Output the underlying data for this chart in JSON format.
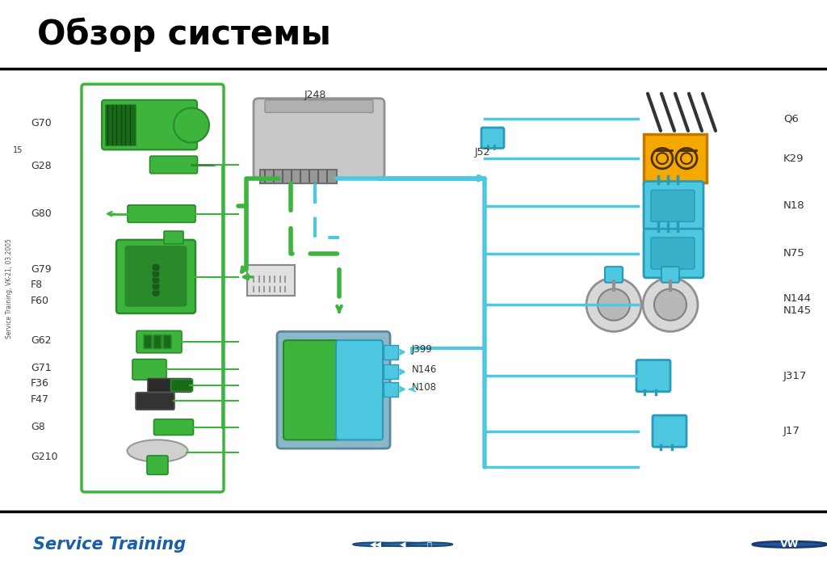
{
  "title": "Обзор системы",
  "bg_color": "#ffffff",
  "green": "#3db53d",
  "green_dark": "#2a8a2a",
  "green_mid": "#4dc44d",
  "blue": "#4ec8e0",
  "blue_dark": "#2a9ab8",
  "blue_mid": "#3ab5cc",
  "orange": "#f5a800",
  "orange_dark": "#c07800",
  "gray_ecu": "#c0c0c0",
  "gray_dark": "#909090",
  "footer_blue": "#1a5fa8",
  "left_labels": [
    "G70",
    "G28",
    "G80",
    "G79",
    "F8",
    "F60",
    "G62",
    "G71",
    "F36",
    "F47",
    "G8",
    "G210"
  ],
  "right_labels": [
    "Q6",
    "K29",
    "N18",
    "N75",
    "N144\nN145",
    "J317",
    "J17"
  ],
  "side_text": "Service Training, VK-21, 03.2005",
  "page_num": "15"
}
